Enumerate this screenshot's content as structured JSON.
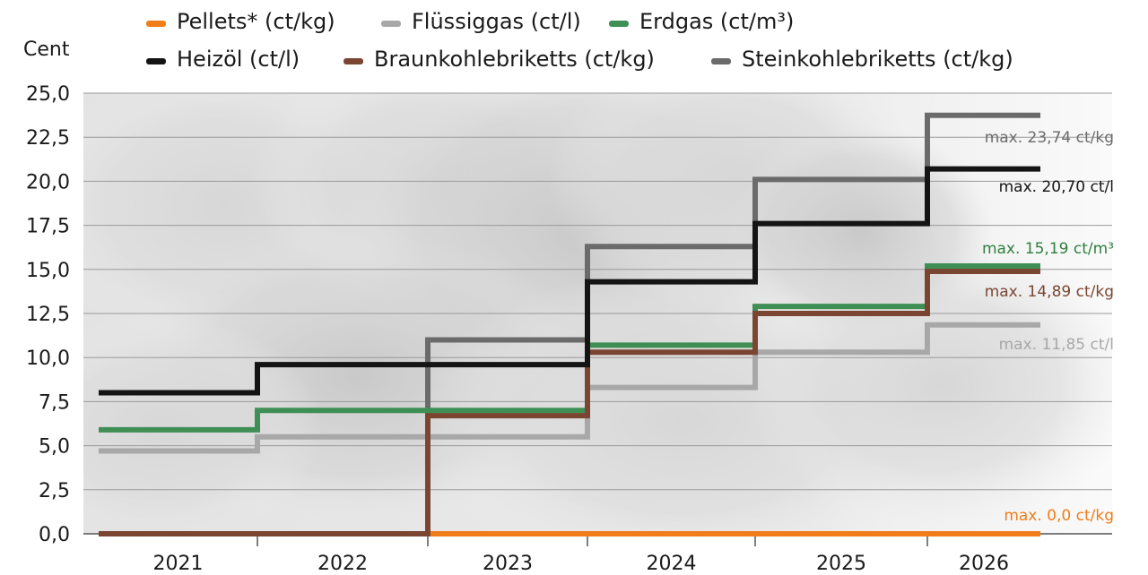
{
  "chart_data": {
    "type": "line",
    "step": true,
    "ylabel": "Cent",
    "ylim": [
      0,
      25
    ],
    "yticks": [
      "0,0",
      "2,5",
      "5,0",
      "7,5",
      "10,0",
      "12,5",
      "15,0",
      "17,5",
      "20,0",
      "22,5",
      "25,0"
    ],
    "ytick_values": [
      0,
      2.5,
      5,
      7.5,
      10,
      12.5,
      15,
      17.5,
      20,
      22.5,
      25
    ],
    "categories": [
      "2021",
      "2022",
      "2023",
      "2024",
      "2025",
      "2026"
    ],
    "grid": "horizontal",
    "legend_position": "top",
    "series": [
      {
        "name": "Pellets* (ct/kg)",
        "color": "#f07d1a",
        "values": [
          0,
          0,
          0,
          0,
          0,
          0
        ],
        "annotation": "max. 0,0 ct/kg"
      },
      {
        "name": "Flüssiggas (ct/l)",
        "color": "#a8a8a8",
        "values": [
          4.7,
          5.5,
          5.5,
          8.3,
          10.3,
          11.85
        ],
        "annotation": "max. 11,85 ct/l"
      },
      {
        "name": "Erdgas (ct/m³)",
        "color": "#3f8f55",
        "values": [
          5.9,
          7.0,
          7.0,
          10.7,
          12.9,
          15.19
        ],
        "annotation": "max. 15,19 ct/m³"
      },
      {
        "name": "Heizöl (ct/l)",
        "color": "#141414",
        "values": [
          8.0,
          9.6,
          9.6,
          14.3,
          17.6,
          20.7
        ],
        "annotation": "max. 20,70 ct/l"
      },
      {
        "name": "Braunkohlebriketts (ct/kg)",
        "color": "#7a4632",
        "values": [
          0,
          0,
          6.7,
          10.3,
          12.5,
          14.89
        ],
        "annotation": "max. 14,89 ct/kg"
      },
      {
        "name": "Steinkohlebriketts (ct/kg)",
        "color": "#6b6b6b",
        "values": [
          0,
          0,
          11.0,
          16.3,
          20.1,
          23.74
        ],
        "annotation": "max. 23,74 ct/kg"
      }
    ]
  }
}
